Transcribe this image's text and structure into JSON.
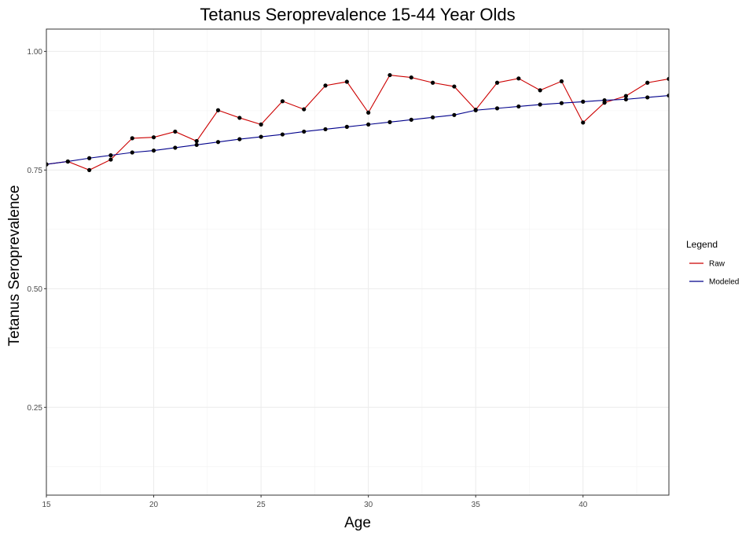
{
  "chart_data": {
    "type": "line",
    "title": "Tetanus Seroprevalence 15-44 Year Olds",
    "xlabel": "Age",
    "ylabel": "Tetanus Seroprevalence",
    "xlim": [
      15,
      44
    ],
    "ylim": [
      0.065,
      1.047
    ],
    "x_ticks": [
      15,
      20,
      25,
      30,
      35,
      40
    ],
    "y_ticks": [
      0.25,
      0.5,
      0.75,
      1.0
    ],
    "y_tick_labels": [
      "0.25",
      "0.50",
      "0.75",
      "1.00"
    ],
    "grid": true,
    "legend_position": "right",
    "legend_title": "Legend",
    "x": [
      15,
      16,
      17,
      18,
      19,
      20,
      21,
      22,
      23,
      24,
      25,
      26,
      27,
      28,
      29,
      30,
      31,
      32,
      33,
      34,
      35,
      36,
      37,
      38,
      39,
      40,
      41,
      42,
      43,
      44
    ],
    "series": [
      {
        "name": "Raw",
        "color": "#cc0000",
        "values": [
          0.762,
          0.768,
          0.75,
          0.772,
          0.817,
          0.819,
          0.831,
          0.811,
          0.876,
          0.86,
          0.846,
          0.895,
          0.878,
          0.928,
          0.936,
          0.871,
          0.95,
          0.945,
          0.934,
          0.926,
          0.877,
          0.934,
          0.943,
          0.918,
          0.937,
          0.85,
          0.892,
          0.906,
          0.934,
          0.942
        ]
      },
      {
        "name": "Modeled",
        "color": "#00008b",
        "values": [
          0.762,
          0.768,
          0.775,
          0.781,
          0.787,
          0.791,
          0.797,
          0.803,
          0.809,
          0.815,
          0.82,
          0.825,
          0.831,
          0.836,
          0.841,
          0.846,
          0.851,
          0.856,
          0.861,
          0.866,
          0.876,
          0.88,
          0.884,
          0.888,
          0.891,
          0.894,
          0.897,
          0.899,
          0.903,
          0.907
        ]
      }
    ]
  }
}
